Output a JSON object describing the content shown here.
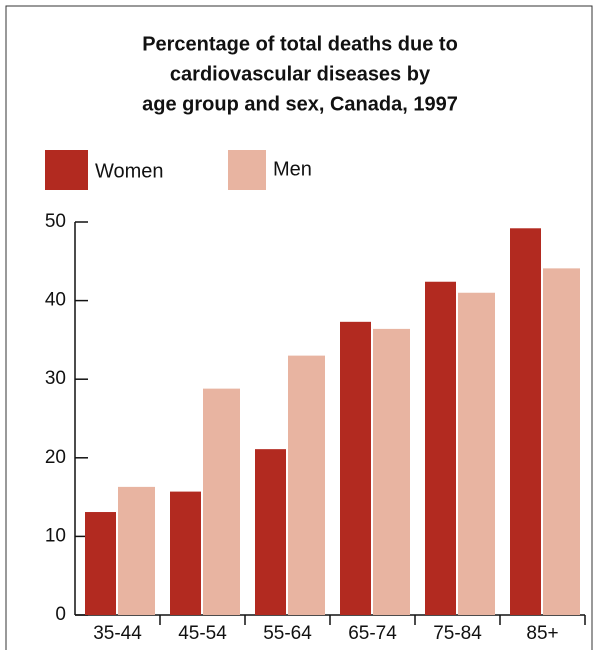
{
  "chart_data": {
    "type": "bar",
    "title": [
      "Percentage of total deaths due to",
      "cardiovascular diseases by",
      "age group and sex, Canada, 1997"
    ],
    "categories": [
      "35-44",
      "45-54",
      "55-64",
      "65-74",
      "75-84",
      "85+"
    ],
    "series": [
      {
        "name": "Women",
        "color": "#b22a20",
        "values": [
          13.1,
          15.7,
          21.1,
          37.3,
          42.4,
          49.2
        ]
      },
      {
        "name": "Men",
        "color": "#e8b4a1",
        "values": [
          16.3,
          28.8,
          33.0,
          36.4,
          41.0,
          44.1
        ]
      }
    ],
    "ylim": [
      0,
      50
    ],
    "yticks": [
      0,
      10,
      20,
      30,
      40,
      50
    ],
    "grid": false
  }
}
